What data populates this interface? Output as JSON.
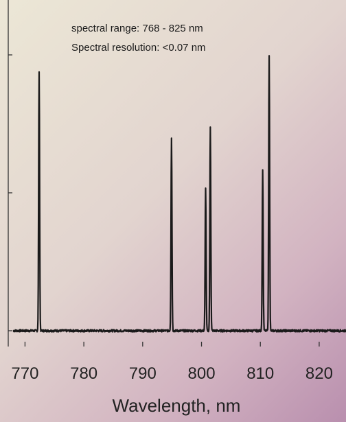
{
  "chart_data": {
    "type": "line",
    "title": "",
    "xlabel": "Wavelength, nm",
    "ylabel": "",
    "xlim": [
      767.5,
      826.5
    ],
    "ylim": [
      0,
      1.06
    ],
    "x_ticks": [
      770,
      780,
      790,
      800,
      810,
      820
    ],
    "y_ticks": [
      0,
      0.5,
      1.0
    ],
    "y_tick_labels_visible": false,
    "grid": false,
    "annotations": [
      "spectral range: 768 - 825 nm",
      "Spectral resolution: <0.07 nm"
    ],
    "series": [
      {
        "baseline": 0,
        "peak_width_nm": 0.25,
        "peaks": [
          {
            "x": 772.4,
            "y": 0.94
          },
          {
            "x": 794.9,
            "y": 0.7
          },
          {
            "x": 800.7,
            "y": 0.52
          },
          {
            "x": 801.5,
            "y": 0.74
          },
          {
            "x": 810.4,
            "y": 0.58
          },
          {
            "x": 811.5,
            "y": 1.0
          }
        ]
      }
    ],
    "color": "#1a1a1a"
  }
}
